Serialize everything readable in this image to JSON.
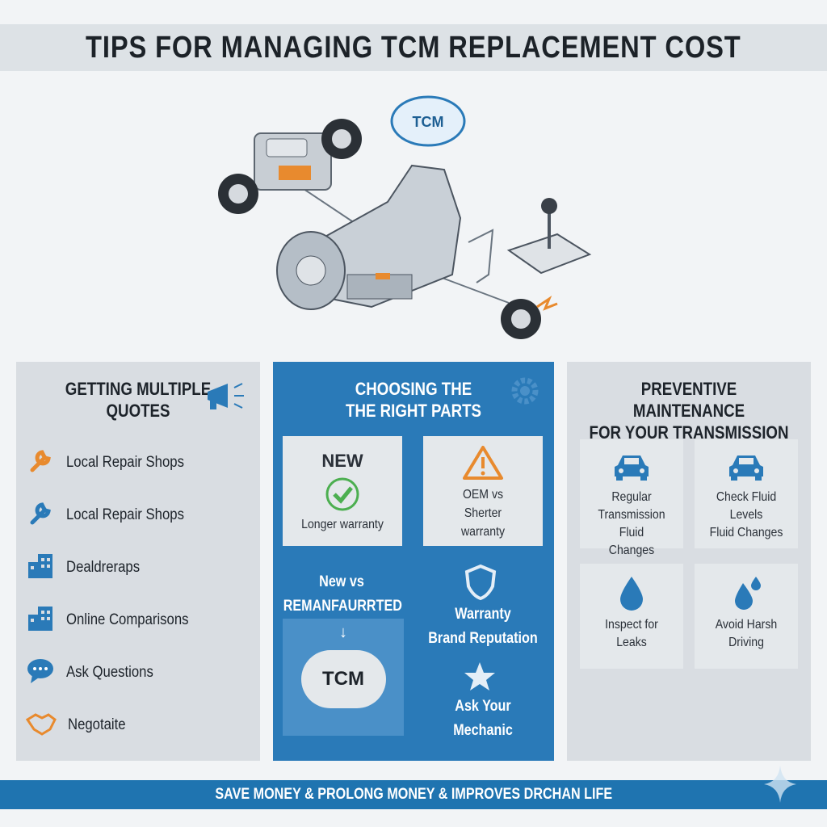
{
  "title": "TIPS FOR MANAGING TCM REPLACEMENT COST",
  "illustration": {
    "tcm_label": "TCM"
  },
  "left": {
    "heading": [
      "GETTING MULTIPLE",
      "QUOTES"
    ],
    "items": [
      {
        "icon": "wrench-icon",
        "label": "Local Repair Shops",
        "color": "#e88a2e"
      },
      {
        "icon": "wrench-icon",
        "label": "Local Repair Shops",
        "color": "#2a7ab8"
      },
      {
        "icon": "building-icon",
        "label": "Dealdreraps",
        "color": "#2a7ab8"
      },
      {
        "icon": "building-icon",
        "label": "Online Comparisons",
        "color": "#2a7ab8"
      },
      {
        "icon": "chat-bubble-icon",
        "label": "Ask Questions",
        "color": "#2a7ab8"
      },
      {
        "icon": "handshake-icon",
        "label": "Negotaite",
        "color": "#e88a2e"
      }
    ]
  },
  "middle": {
    "heading": [
      "CHOOSING THE",
      "THE RIGHT PARTS"
    ],
    "new_box": {
      "title": "NEW",
      "text": "Longer warranty"
    },
    "oem_box": {
      "lines": [
        "OEM vs",
        "Sherter",
        "warranty"
      ]
    },
    "compare": [
      "New vs",
      "REMANFAURRTED"
    ],
    "tcm_label": "TCM",
    "right_lines": [
      "Warranty",
      "Brand Reputation"
    ],
    "ask": "Ask Your Mechanic"
  },
  "right": {
    "heading": [
      "PREVENTIVE MAINTENANCE",
      "FOR YOUR TRANSMISSION"
    ],
    "cards": [
      {
        "icon": "car-icon",
        "lines": [
          "Regular",
          "Transmission Fluid",
          "Changes"
        ]
      },
      {
        "icon": "car-icon",
        "lines": [
          "Check Fluid Levels",
          "Fluid Changes"
        ]
      },
      {
        "icon": "droplet-icon",
        "lines": [
          "Inspect for",
          "Leaks"
        ]
      },
      {
        "icon": "droplets-icon",
        "lines": [
          "Avoid Harsh",
          "Driving"
        ]
      }
    ]
  },
  "footer": "SAVE MONEY & PROLONG MONEY & IMPROVES DRCHAN LIFE",
  "colors": {
    "blue": "#2a7ab8",
    "orange": "#e88a2e",
    "gray": "#d9dde2"
  }
}
